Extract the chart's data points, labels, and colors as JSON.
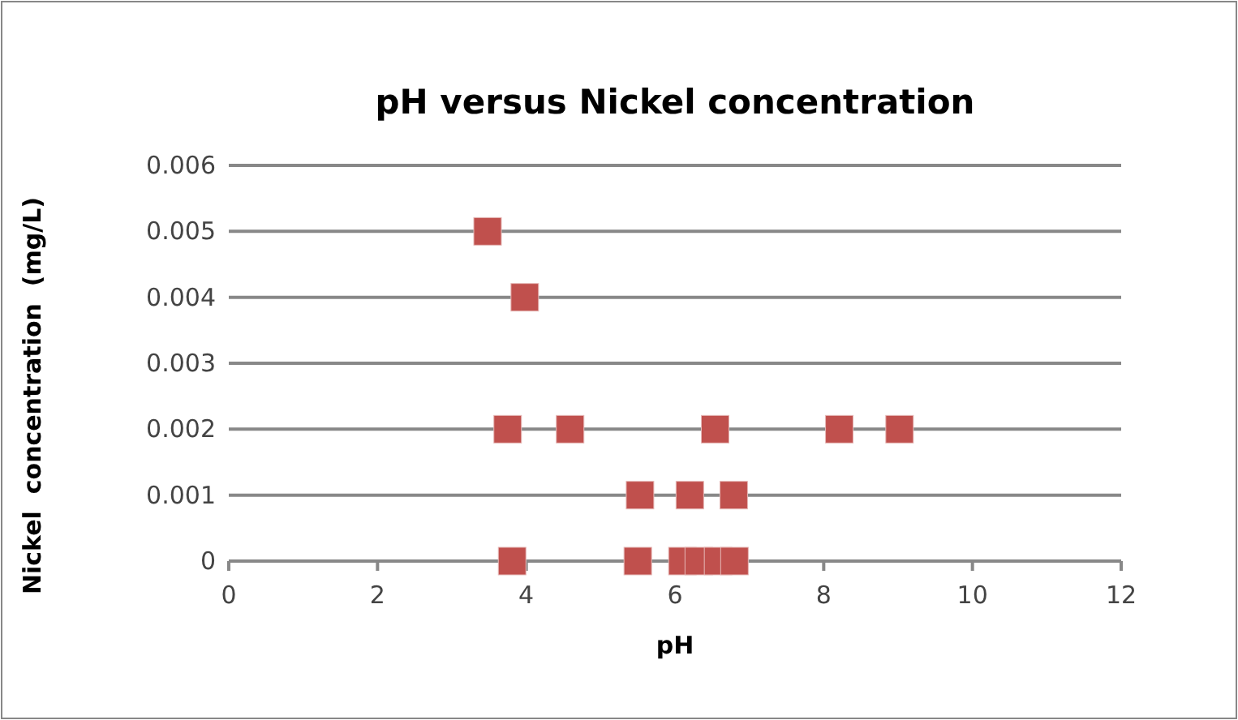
{
  "chart_data": {
    "type": "scatter",
    "title": "pH versus Nickel concentration",
    "xlabel": "pH",
    "ylabel": "Nickel  concentration  (mg/L)",
    "x": [
      3.48,
      3.98,
      3.75,
      4.59,
      6.54,
      8.21,
      9.02,
      5.53,
      6.2,
      6.79,
      3.81,
      5.5,
      6.1,
      6.32,
      6.58,
      6.8
    ],
    "values": [
      0.005,
      0.004,
      0.002,
      0.002,
      0.002,
      0.002,
      0.002,
      0.001,
      0.001,
      0.001,
      0,
      0,
      0,
      0,
      0,
      0
    ],
    "color": "#c0504d",
    "marker": "square",
    "xlim": [
      0,
      12
    ],
    "xticks": [
      0,
      2,
      4,
      6,
      8,
      10,
      12
    ],
    "ylim": [
      0,
      0.006
    ],
    "yticks": [
      0,
      0.001,
      0.002,
      0.003,
      0.004,
      0.005,
      0.006
    ],
    "grid": "y"
  }
}
